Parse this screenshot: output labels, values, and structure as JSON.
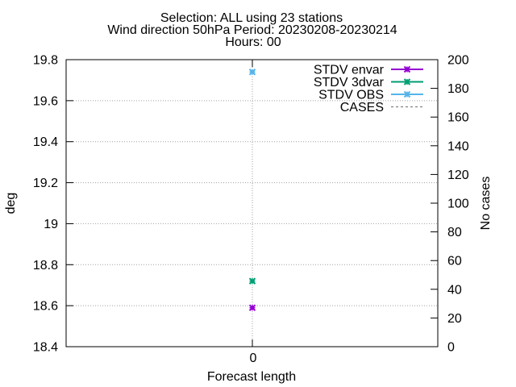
{
  "chart_data": {
    "type": "scatter",
    "title_lines": [
      "Selection: ALL using    23 stations",
      "Wind direction 50hPa   Period: 20230208-20230214",
      "Hours: 00"
    ],
    "xlabel": "Forecast length",
    "ylabel": "deg",
    "y2label": "No cases",
    "x_ticks": [
      "0"
    ],
    "ylim": [
      18.4,
      19.8
    ],
    "y_ticks": [
      "18.4",
      "18.6",
      "18.8",
      "19",
      "19.2",
      "19.4",
      "19.6",
      "19.8"
    ],
    "y2lim": [
      0,
      200
    ],
    "y2_ticks": [
      "0",
      "20",
      "40",
      "60",
      "80",
      "100",
      "120",
      "140",
      "160",
      "180",
      "200"
    ],
    "grid": true,
    "legend_position": "top-right",
    "series": [
      {
        "name": "STDV envar",
        "color": "#9400d3",
        "x": [
          0
        ],
        "y": [
          18.59
        ],
        "axis": "y1"
      },
      {
        "name": "STDV 3dvar",
        "color": "#009e73",
        "x": [
          0
        ],
        "y": [
          18.72
        ],
        "axis": "y1"
      },
      {
        "name": "STDV OBS",
        "color": "#56b4e9",
        "x": [
          0
        ],
        "y": [
          19.74
        ],
        "axis": "y1"
      },
      {
        "name": "CASES",
        "color": "#808080",
        "x": [],
        "y": [],
        "axis": "y2",
        "dashed": true
      }
    ]
  }
}
